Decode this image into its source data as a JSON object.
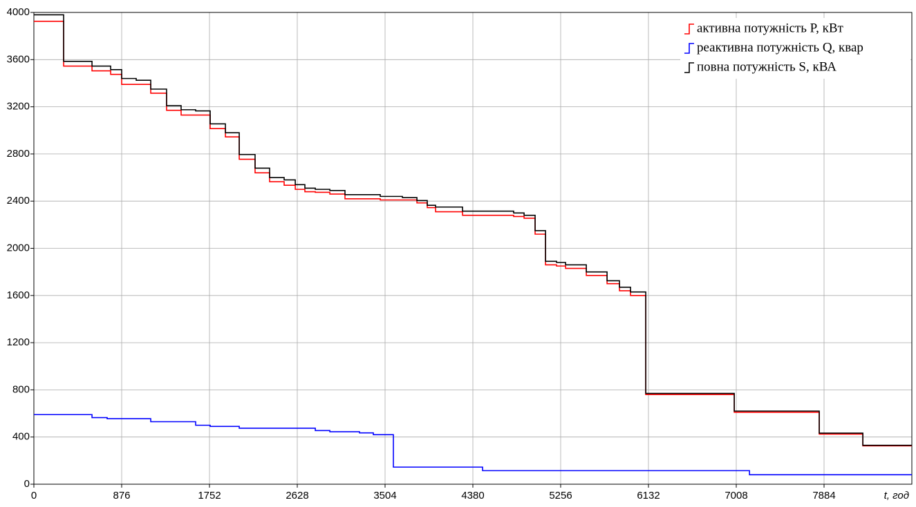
{
  "chart_data": {
    "type": "step",
    "xlabel": "t, год",
    "xlim": [
      0,
      8760
    ],
    "xticks": [
      0,
      876,
      1752,
      2628,
      3504,
      4380,
      5256,
      6132,
      7008,
      7884
    ],
    "ylim": [
      0,
      4000
    ],
    "yticks": [
      0,
      400,
      800,
      1200,
      1600,
      2000,
      2400,
      2800,
      3200,
      3600,
      4000
    ],
    "grid": true,
    "legend": "upper right",
    "series": [
      {
        "name": "активна потужність P, кВт",
        "color": "#ff0000",
        "x": [
          0,
          297,
          580,
          766,
          876,
          1021,
          1166,
          1324,
          1469,
          1614,
          1759,
          1911,
          2049,
          2207,
          2352,
          2497,
          2608,
          2704,
          2808,
          2953,
          3104,
          3456,
          3677,
          3822,
          3925,
          4008,
          4277,
          4787,
          4891,
          5001,
          5105,
          5215,
          5305,
          5512,
          5719,
          5843,
          5953,
          6105,
          6988,
          7836,
          8271,
          8760
        ],
        "values": [
          3925,
          3545,
          3505,
          3475,
          3390,
          3390,
          3315,
          3170,
          3130,
          3130,
          3015,
          2945,
          2755,
          2640,
          2565,
          2535,
          2500,
          2480,
          2475,
          2460,
          2420,
          2410,
          2410,
          2385,
          2345,
          2310,
          2280,
          2270,
          2255,
          2120,
          1860,
          1850,
          1830,
          1770,
          1700,
          1640,
          1600,
          760,
          610,
          425,
          325,
          325
        ]
      },
      {
        "name": "реактивна потужність Q, квар",
        "color": "#0000ff",
        "x": [
          0,
          580,
          731,
          1166,
          1614,
          1759,
          2049,
          2808,
          2953,
          3249,
          3387,
          3587,
          4477,
          7140,
          8760
        ],
        "values": [
          590,
          565,
          555,
          530,
          500,
          490,
          475,
          455,
          445,
          435,
          420,
          145,
          115,
          80,
          80
        ]
      },
      {
        "name": "повна потужність S, кВА",
        "color": "#000000",
        "x": [
          0,
          297,
          580,
          766,
          876,
          1021,
          1166,
          1324,
          1469,
          1614,
          1759,
          1911,
          2049,
          2207,
          2352,
          2497,
          2608,
          2704,
          2808,
          2953,
          3104,
          3456,
          3677,
          3822,
          3925,
          4008,
          4277,
          4787,
          4891,
          5001,
          5105,
          5215,
          5305,
          5512,
          5719,
          5843,
          5953,
          6105,
          6988,
          7836,
          8271,
          8760
        ],
        "values": [
          3980,
          3585,
          3545,
          3515,
          3440,
          3425,
          3350,
          3210,
          3175,
          3165,
          3055,
          2980,
          2795,
          2680,
          2600,
          2580,
          2540,
          2510,
          2500,
          2490,
          2455,
          2440,
          2430,
          2405,
          2365,
          2350,
          2315,
          2300,
          2280,
          2150,
          1890,
          1880,
          1860,
          1800,
          1725,
          1670,
          1630,
          770,
          620,
          433,
          330,
          330
        ]
      }
    ]
  }
}
